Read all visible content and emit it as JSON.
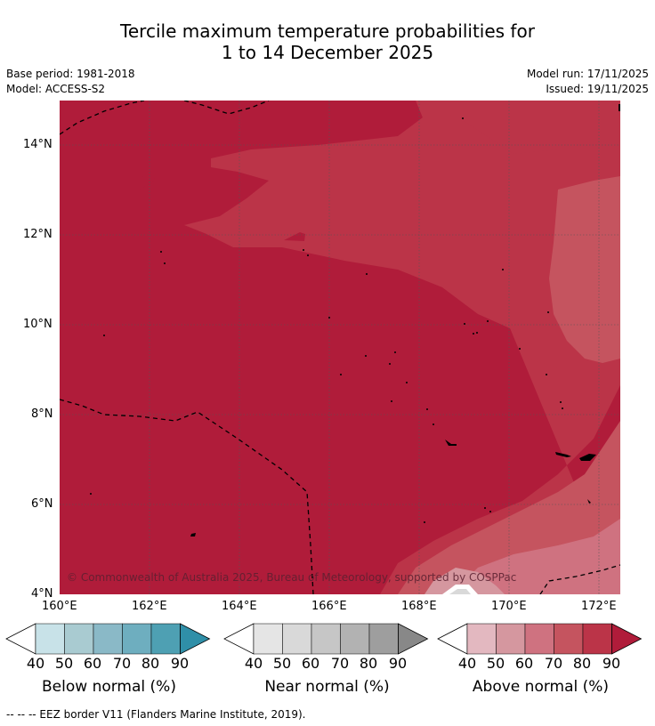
{
  "title_line1": "Tercile maximum temperature probabilities for",
  "title_line2": "1 to 14 December 2025",
  "base_period": "Base period: 1981-2018",
  "model": "Model: ACCESS-S2",
  "model_run": "Model run: 17/11/2025",
  "issued": "Issued: 19/11/2025",
  "copyright": "© Commonwealth of Australia 2025, Bureau of Meteorology, supported by COSPPac",
  "footnote": "--  --  -- EEZ border V11 (Flanders Marine Institute, 2019).",
  "axes": {
    "lat_labels": [
      "14°N",
      "12°N",
      "10°N",
      "8°N",
      "6°N",
      "4°N"
    ],
    "lon_labels": [
      "160°E",
      "162°E",
      "164°E",
      "166°E",
      "168°E",
      "170°E",
      "172°E"
    ]
  },
  "colors": {
    "above": [
      "#e3b8c0",
      "#d5979f",
      "#cf7280",
      "#c5545f",
      "#bb3448",
      "#b01c3a"
    ],
    "near": [
      "#e5e5e5",
      "#d9d9d9",
      "#c6c6c6",
      "#b2b2b2",
      "#9e9e9e",
      "#888888"
    ],
    "below": [
      "#c8e2e8",
      "#a9cbd1",
      "#8ab9c7",
      "#6eaebf",
      "#4ea0b3",
      "#2f8fa8"
    ]
  },
  "legends": [
    {
      "label": "Below normal (%)",
      "ticks": [
        "40",
        "50",
        "60",
        "70",
        "80",
        "90"
      ]
    },
    {
      "label": "Near normal (%)",
      "ticks": [
        "40",
        "50",
        "60",
        "70",
        "80",
        "90"
      ]
    },
    {
      "label": "Above normal (%)",
      "ticks": [
        "40",
        "50",
        "60",
        "70",
        "80",
        "90"
      ]
    }
  ]
}
